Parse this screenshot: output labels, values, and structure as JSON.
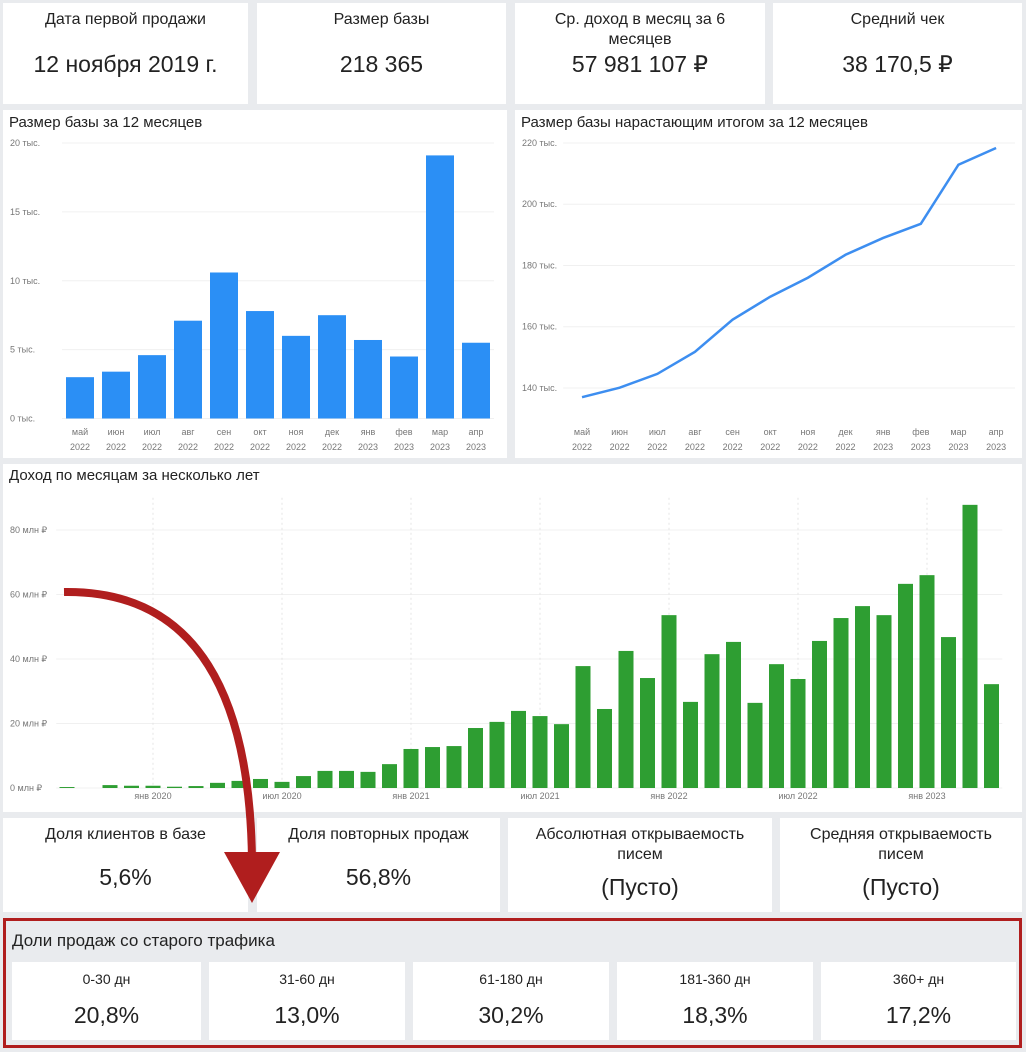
{
  "kpi_cards": [
    {
      "title": "Дата первой продажи",
      "value": "12 ноября 2019 г."
    },
    {
      "title": "Размер базы",
      "value": "218 365"
    },
    {
      "title": "Ср. доход в месяц за 6 месяцев",
      "value": "57 981 107 ₽"
    },
    {
      "title": "Средний чек",
      "value": "38 170,5 ₽"
    }
  ],
  "charts": [
    {
      "type": "bar",
      "title": "Размер базы за 12 месяцев",
      "color": "#2b8ff5",
      "categories": [
        "май 2022",
        "июн 2022",
        "июл 2022",
        "авг 2022",
        "сен 2022",
        "окт 2022",
        "ноя 2022",
        "дек 2022",
        "янв 2023",
        "фев 2023",
        "мар 2023",
        "апр 2023"
      ],
      "values": [
        3000,
        3400,
        4600,
        7100,
        10600,
        7800,
        6000,
        7500,
        5700,
        4500,
        19100,
        5500
      ],
      "ylim": [
        0,
        20000
      ],
      "yticks": [
        {
          "value": 0,
          "label": "0 тыс."
        },
        {
          "value": 5000,
          "label": "5 тыс."
        },
        {
          "value": 10000,
          "label": "10 тыс."
        },
        {
          "value": 15000,
          "label": "15 тыс."
        },
        {
          "value": 20000,
          "label": "20 тыс."
        }
      ],
      "grid": true
    },
    {
      "type": "line",
      "title": "Размер базы нарастающим итогом за 12 месяцев",
      "color": "#3d8ef0",
      "categories": [
        "май 2022",
        "июн 2022",
        "июл 2022",
        "авг 2022",
        "сен 2022",
        "окт 2022",
        "ноя 2022",
        "дек 2022",
        "янв 2023",
        "фев 2023",
        "мар 2023",
        "апр 2023"
      ],
      "values": [
        137000,
        140100,
        144600,
        151800,
        162300,
        169800,
        176000,
        183500,
        189000,
        193600,
        212900,
        218365
      ],
      "ylim": [
        130000,
        220000
      ],
      "yticks": [
        {
          "value": 140000,
          "label": "140 тыс."
        },
        {
          "value": 160000,
          "label": "160 тыс."
        },
        {
          "value": 180000,
          "label": "180 тыс."
        },
        {
          "value": 200000,
          "label": "200 тыс."
        },
        {
          "value": 220000,
          "label": "220 тыс."
        }
      ],
      "grid": true
    },
    {
      "type": "bar",
      "title": "Доход по месяцам за несколько лет",
      "color": "#2e9e32",
      "categories": [
        null,
        null,
        null,
        null,
        "янв 2020",
        null,
        null,
        null,
        null,
        null,
        "июл 2020",
        null,
        null,
        null,
        null,
        null,
        "янв 2021",
        null,
        null,
        null,
        null,
        null,
        "июл 2021",
        null,
        null,
        null,
        null,
        null,
        "янв 2022",
        null,
        null,
        null,
        null,
        null,
        "июл 2022",
        null,
        null,
        null,
        null,
        null,
        "янв 2023",
        null,
        null,
        null
      ],
      "values": [
        300000,
        0,
        900000,
        700000,
        700000,
        400000,
        600000,
        1600000,
        2200000,
        2800000,
        1900000,
        3700000,
        5300000,
        5300000,
        5000000,
        7400000,
        12100000,
        12700000,
        13000000,
        18600000,
        20500000,
        23900000,
        22300000,
        19800000,
        37800000,
        24500000,
        42500000,
        34100000,
        53600000,
        26700000,
        41500000,
        45300000,
        26400000,
        38400000,
        33800000,
        45600000,
        52700000,
        56400000,
        53600000,
        63300000,
        66000000,
        46800000,
        87800000,
        32200000
      ],
      "ylim": [
        0,
        90000000
      ],
      "yticks": [
        {
          "value": 0,
          "label": "0 млн ₽"
        },
        {
          "value": 20000000,
          "label": "20 млн ₽"
        },
        {
          "value": 40000000,
          "label": "40 млн ₽"
        },
        {
          "value": 60000000,
          "label": "60 млн ₽"
        },
        {
          "value": 80000000,
          "label": "80 млн ₽"
        }
      ],
      "grid": true
    }
  ],
  "kpi_cards_2": [
    {
      "title": "Доля клиентов в базе",
      "value": "5,6%"
    },
    {
      "title": "Доля повторных продаж",
      "value": "56,8%"
    },
    {
      "title": "Абсолютная открываемость писем",
      "value": "(Пусто)"
    },
    {
      "title": "Средняя открываемость писем",
      "value": "(Пусто)"
    }
  ],
  "old_traffic": {
    "title": "Доли продаж со старого трафика",
    "cards": [
      {
        "title": "0-30 дн",
        "value": "20,8%"
      },
      {
        "title": "31-60 дн",
        "value": "13,0%"
      },
      {
        "title": "61-180 дн",
        "value": "30,2%"
      },
      {
        "title": "181-360 дн",
        "value": "18,3%"
      },
      {
        "title": "360+ дн",
        "value": "17,2%"
      }
    ]
  }
}
